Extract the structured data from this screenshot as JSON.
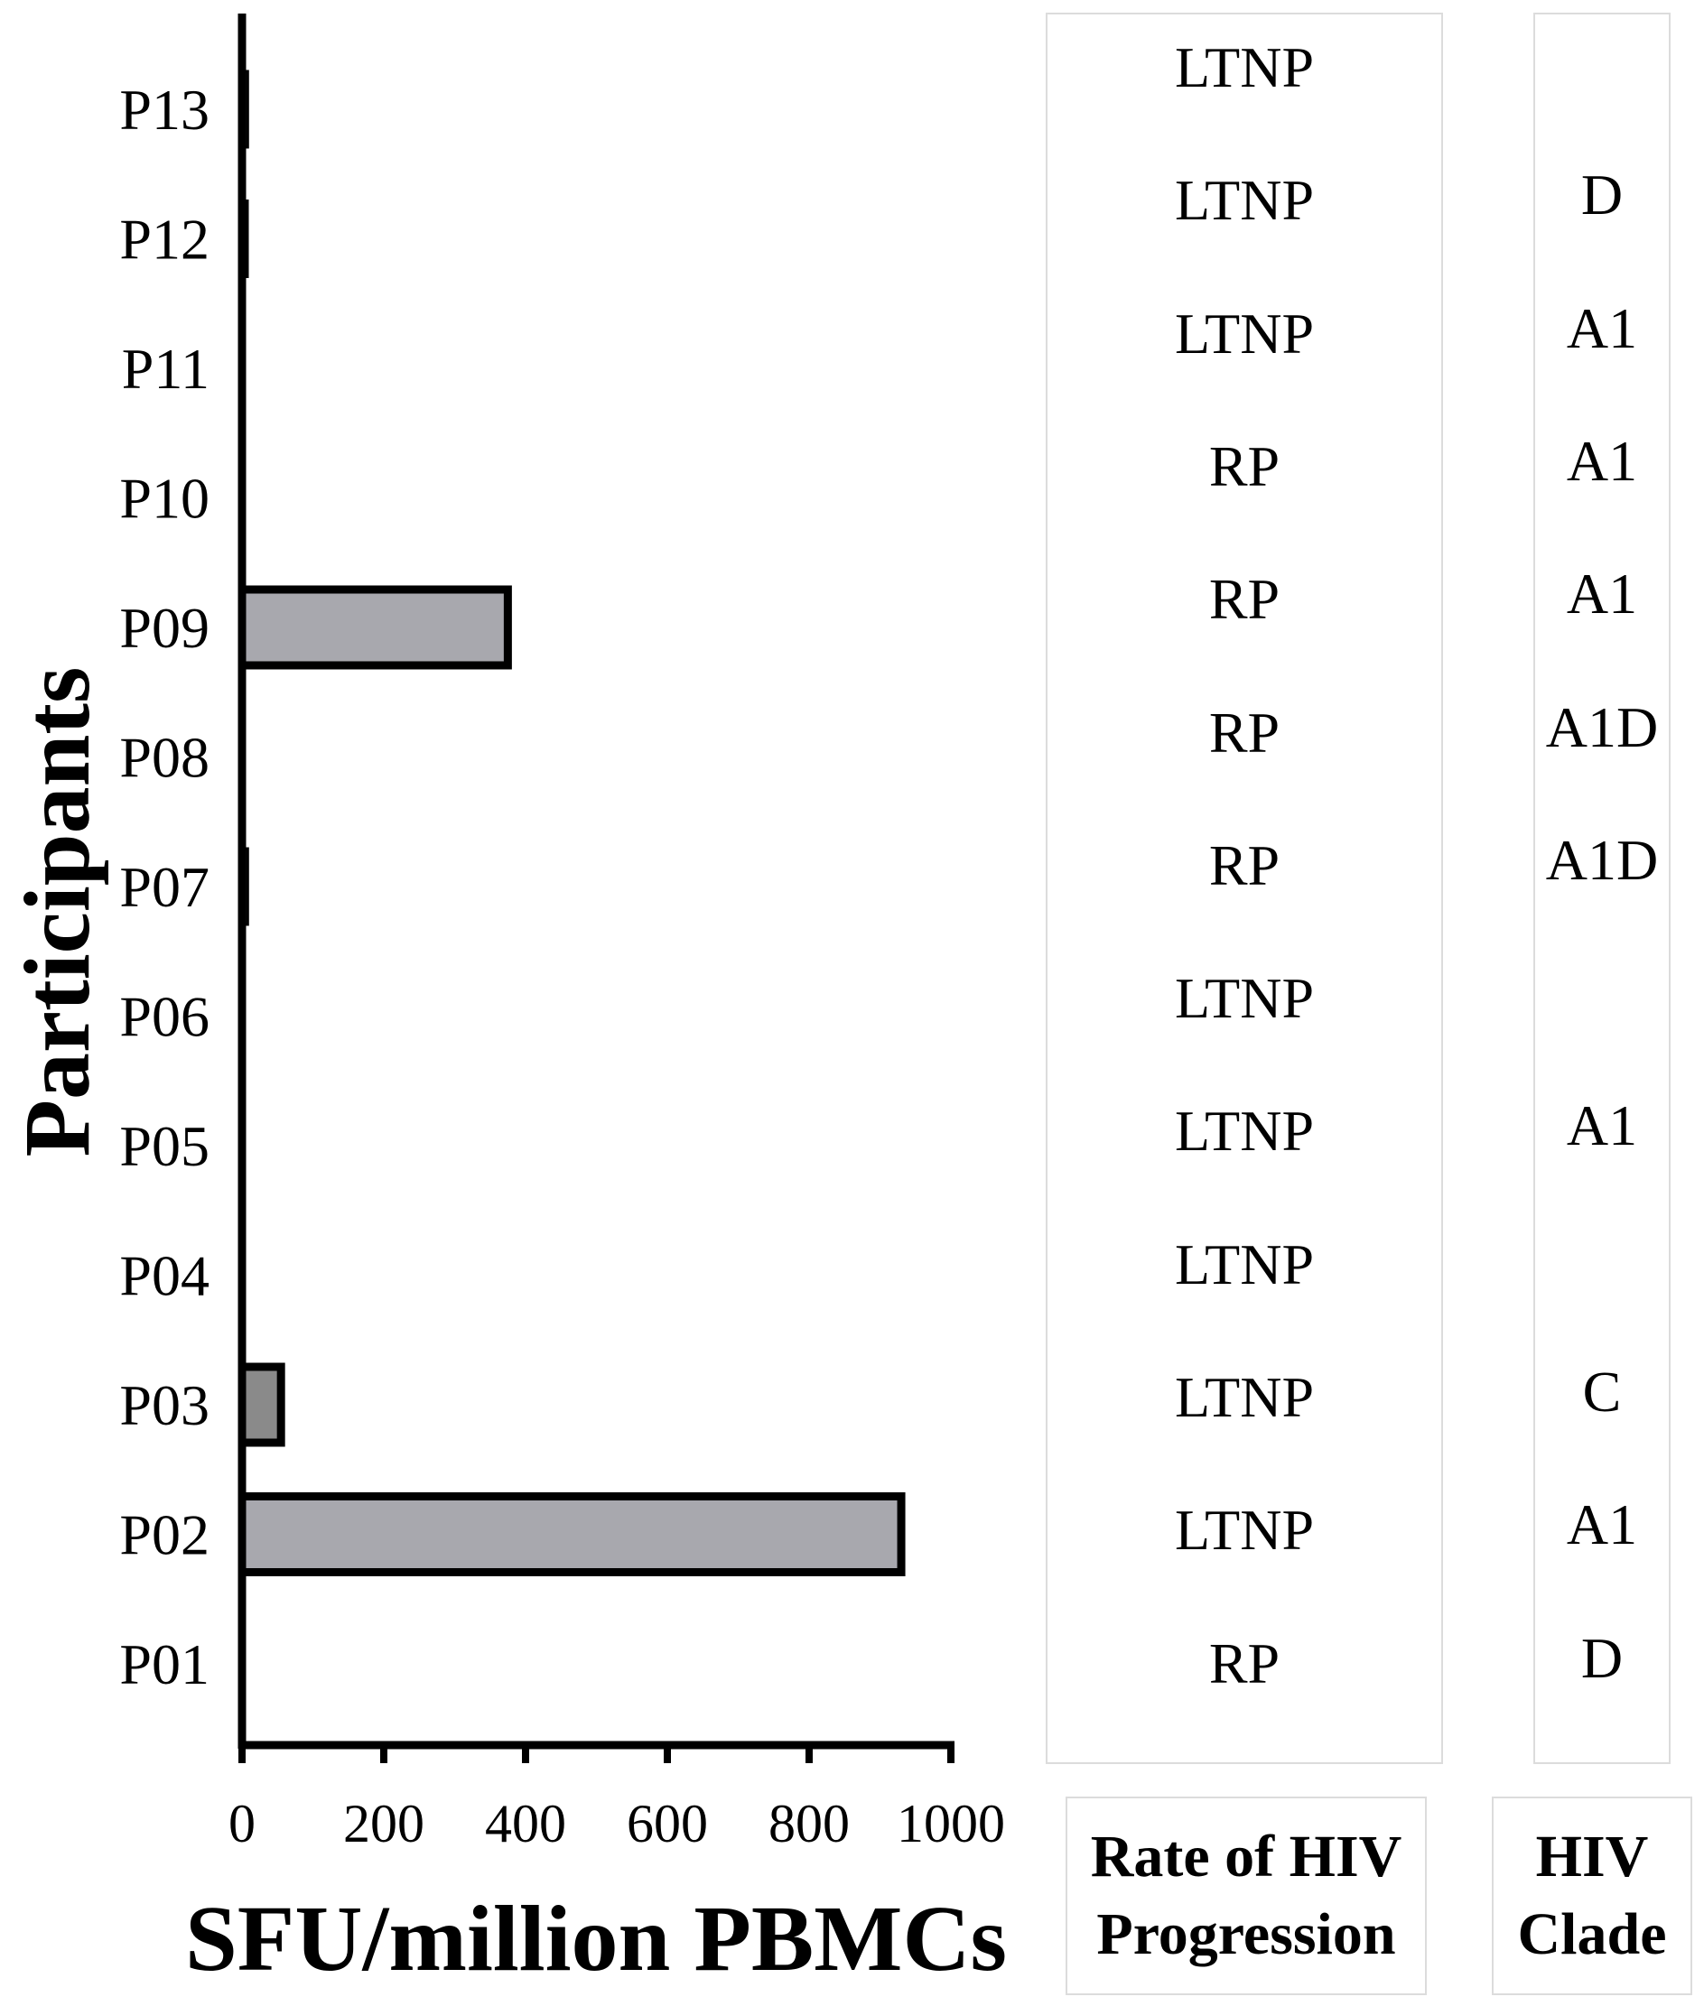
{
  "chart_data": {
    "type": "bar",
    "orientation": "horizontal",
    "categories": [
      "P01",
      "P02",
      "P03",
      "P04",
      "P05",
      "P06",
      "P07",
      "P08",
      "P09",
      "P10",
      "P11",
      "P12",
      "P13"
    ],
    "values": [
      0,
      930,
      55,
      0,
      0,
      0,
      8,
      0,
      375,
      0,
      0,
      3,
      8
    ],
    "bar_fills": [
      "#a8a8ae",
      "#a8a8ae",
      "#8a8a8a",
      "#a8a8ae",
      "#a8a8ae",
      "#a8a8ae",
      "#1a1a1a",
      "#a8a8ae",
      "#a8a8ae",
      "#a8a8ae",
      "#a8a8ae",
      "#1a1a1a",
      "#1a1a1a"
    ],
    "xlim": [
      0,
      1000
    ],
    "xticks": [
      0,
      200,
      400,
      600,
      800,
      1000
    ],
    "xlabel": "SFU/million PBMCs",
    "ylabel": "Participants",
    "title": ""
  },
  "table": {
    "progression_header": [
      "Rate of HIV",
      "Progression"
    ],
    "clade_header": [
      "HIV",
      "Clade"
    ],
    "rows_top_to_bottom": [
      {
        "participant": "P13",
        "progression": "LTNP",
        "clade": ""
      },
      {
        "participant": "P12",
        "progression": "LTNP",
        "clade": "D"
      },
      {
        "participant": "P11",
        "progression": "LTNP",
        "clade": "A1"
      },
      {
        "participant": "P10",
        "progression": "RP",
        "clade": "A1"
      },
      {
        "participant": "P09",
        "progression": "RP",
        "clade": "A1"
      },
      {
        "participant": "P08",
        "progression": "RP",
        "clade": "A1D"
      },
      {
        "participant": "P07",
        "progression": "RP",
        "clade": "A1D"
      },
      {
        "participant": "P06",
        "progression": "LTNP",
        "clade": ""
      },
      {
        "participant": "P05",
        "progression": "LTNP",
        "clade": "A1"
      },
      {
        "participant": "P04",
        "progression": "LTNP",
        "clade": ""
      },
      {
        "participant": "P03",
        "progression": "LTNP",
        "clade": "C"
      },
      {
        "participant": "P02",
        "progression": "LTNP",
        "clade": "A1"
      },
      {
        "participant": "P01",
        "progression": "RP",
        "clade": "D"
      }
    ]
  }
}
